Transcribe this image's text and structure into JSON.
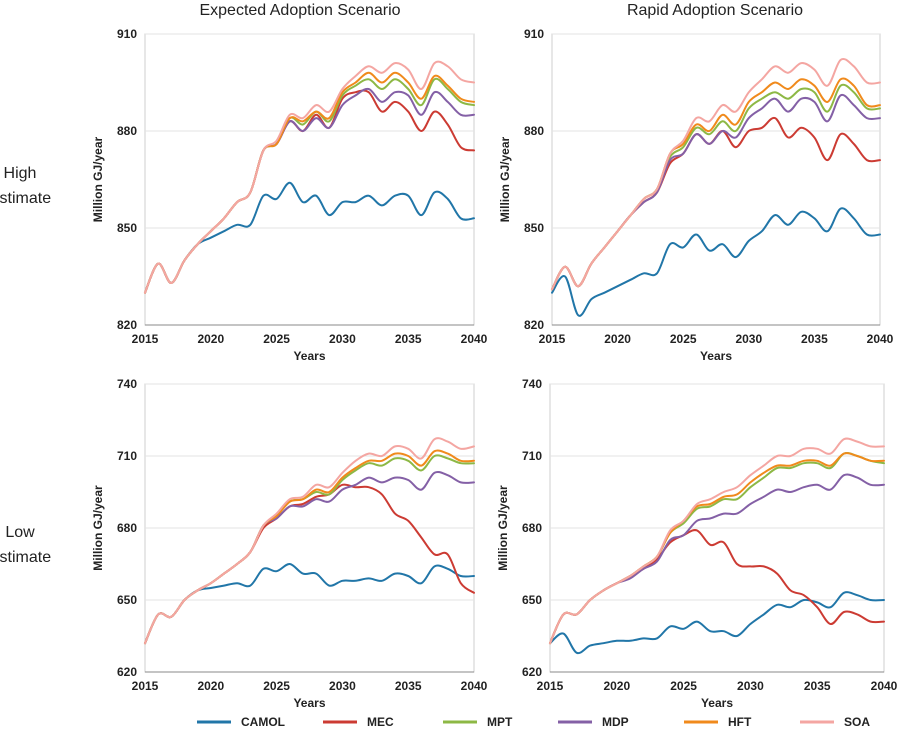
{
  "col_titles": [
    "Expected Adoption Scenario",
    "Rapid Adoption Scenario"
  ],
  "row_labels": [
    [
      "High",
      "Estimate"
    ],
    [
      "Low",
      "Estimate"
    ]
  ],
  "legend": [
    {
      "name": "CAMOL",
      "color": "#2176a8"
    },
    {
      "name": "MEC",
      "color": "#cc3b33"
    },
    {
      "name": "MPT",
      "color": "#8db845"
    },
    {
      "name": "MDP",
      "color": "#8460a6"
    },
    {
      "name": "HFT",
      "color": "#f08a1c"
    },
    {
      "name": "SOA",
      "color": "#f4a6a2"
    }
  ],
  "chart_data": [
    {
      "type": "line",
      "title": "Expected Adoption Scenario",
      "xlabel": "Years",
      "ylabel": "Million GJ/year",
      "xlim": [
        2015,
        2040
      ],
      "ylim": [
        820,
        910
      ],
      "xticks": [
        2015,
        2020,
        2025,
        2030,
        2035,
        2040
      ],
      "yticks": [
        820,
        850,
        880,
        910
      ],
      "grid": true,
      "x": [
        2015,
        2016,
        2017,
        2018,
        2019,
        2020,
        2021,
        2022,
        2023,
        2024,
        2025,
        2026,
        2027,
        2028,
        2029,
        2030,
        2031,
        2032,
        2033,
        2034,
        2035,
        2036,
        2037,
        2038,
        2039,
        2040
      ],
      "series": [
        {
          "name": "CAMOL",
          "values": [
            830,
            839,
            833,
            840,
            845,
            847,
            849,
            851,
            851,
            860,
            859,
            864,
            858,
            860,
            854,
            858,
            858,
            860,
            857,
            860,
            860,
            854,
            861,
            859,
            853,
            853
          ]
        },
        {
          "name": "MEC",
          "values": [
            830,
            839,
            833,
            840,
            845,
            849,
            853,
            858,
            861,
            874,
            876,
            883,
            880,
            885,
            881,
            890,
            892,
            892,
            886,
            889,
            886,
            880,
            886,
            882,
            875,
            874
          ]
        },
        {
          "name": "MPT",
          "values": [
            830,
            839,
            833,
            840,
            845,
            849,
            853,
            858,
            861,
            874,
            876,
            884,
            882,
            886,
            883,
            891,
            894,
            896,
            893,
            896,
            893,
            888,
            896,
            893,
            889,
            888
          ]
        },
        {
          "name": "MDP",
          "values": [
            830,
            839,
            833,
            840,
            845,
            849,
            853,
            858,
            861,
            874,
            876,
            883,
            880,
            884,
            881,
            888,
            891,
            893,
            889,
            892,
            891,
            885,
            892,
            889,
            885,
            885
          ]
        },
        {
          "name": "HFT",
          "values": [
            830,
            839,
            833,
            840,
            845,
            849,
            853,
            858,
            861,
            874,
            876,
            884,
            883,
            886,
            884,
            892,
            895,
            898,
            895,
            898,
            895,
            890,
            897,
            894,
            890,
            889
          ]
        },
        {
          "name": "SOA",
          "values": [
            830,
            839,
            833,
            840,
            845,
            849,
            853,
            858,
            861,
            874,
            877,
            885,
            884,
            888,
            886,
            893,
            897,
            900,
            898,
            901,
            899,
            893,
            901,
            900,
            896,
            895
          ]
        }
      ]
    },
    {
      "type": "line",
      "title": "Rapid Adoption Scenario",
      "xlabel": "Years",
      "ylabel": "Million GJ/year",
      "xlim": [
        2015,
        2040
      ],
      "ylim": [
        820,
        910
      ],
      "xticks": [
        2015,
        2020,
        2025,
        2030,
        2035,
        2040
      ],
      "yticks": [
        820,
        850,
        880,
        910
      ],
      "grid": true,
      "x": [
        2015,
        2016,
        2017,
        2018,
        2019,
        2020,
        2021,
        2022,
        2023,
        2024,
        2025,
        2026,
        2027,
        2028,
        2029,
        2030,
        2031,
        2032,
        2033,
        2034,
        2035,
        2036,
        2037,
        2038,
        2039,
        2040
      ],
      "series": [
        {
          "name": "CAMOL",
          "values": [
            830,
            835,
            823,
            828,
            830,
            832,
            834,
            836,
            836,
            845,
            844,
            848,
            843,
            845,
            841,
            846,
            849,
            854,
            851,
            855,
            853,
            849,
            856,
            853,
            848,
            848
          ]
        },
        {
          "name": "MEC",
          "values": [
            831,
            838,
            832,
            839,
            844,
            849,
            854,
            858,
            861,
            870,
            873,
            879,
            876,
            880,
            875,
            880,
            881,
            884,
            878,
            881,
            878,
            871,
            879,
            876,
            871,
            871
          ]
        },
        {
          "name": "MPT",
          "values": [
            831,
            838,
            832,
            839,
            844,
            849,
            854,
            859,
            862,
            872,
            875,
            881,
            879,
            883,
            880,
            887,
            890,
            892,
            890,
            893,
            892,
            886,
            894,
            892,
            887,
            887
          ]
        },
        {
          "name": "MDP",
          "values": [
            831,
            838,
            832,
            839,
            844,
            849,
            854,
            858,
            861,
            871,
            873,
            879,
            876,
            880,
            878,
            884,
            887,
            890,
            886,
            890,
            889,
            883,
            891,
            888,
            884,
            884
          ]
        },
        {
          "name": "HFT",
          "values": [
            831,
            838,
            832,
            839,
            844,
            849,
            854,
            859,
            862,
            873,
            876,
            882,
            880,
            885,
            882,
            889,
            892,
            895,
            893,
            896,
            894,
            889,
            896,
            894,
            888,
            888
          ]
        },
        {
          "name": "SOA",
          "values": [
            831,
            838,
            832,
            839,
            844,
            849,
            854,
            859,
            862,
            873,
            877,
            884,
            883,
            888,
            886,
            892,
            896,
            900,
            898,
            901,
            899,
            894,
            902,
            900,
            895,
            895
          ]
        }
      ]
    },
    {
      "type": "line",
      "xlabel": "Years",
      "ylabel": "Million GJ/year",
      "xlim": [
        2015,
        2040
      ],
      "ylim": [
        620,
        740
      ],
      "xticks": [
        2015,
        2020,
        2025,
        2030,
        2035,
        2040
      ],
      "yticks": [
        620,
        650,
        680,
        710,
        740
      ],
      "grid": true,
      "x": [
        2015,
        2016,
        2017,
        2018,
        2019,
        2020,
        2021,
        2022,
        2023,
        2024,
        2025,
        2026,
        2027,
        2028,
        2029,
        2030,
        2031,
        2032,
        2033,
        2034,
        2035,
        2036,
        2037,
        2038,
        2039,
        2040
      ],
      "series": [
        {
          "name": "CAMOL",
          "values": [
            632,
            644,
            643,
            650,
            654,
            655,
            656,
            657,
            656,
            663,
            662,
            665,
            661,
            661,
            656,
            658,
            658,
            659,
            658,
            661,
            660,
            657,
            664,
            663,
            660,
            660
          ]
        },
        {
          "name": "MEC",
          "values": [
            632,
            644,
            643,
            650,
            654,
            657,
            661,
            665,
            670,
            680,
            684,
            689,
            690,
            693,
            694,
            698,
            697,
            697,
            694,
            686,
            683,
            676,
            669,
            669,
            657,
            653
          ]
        },
        {
          "name": "MPT",
          "values": [
            632,
            644,
            643,
            650,
            654,
            657,
            661,
            665,
            670,
            681,
            685,
            691,
            692,
            695,
            694,
            700,
            704,
            707,
            706,
            709,
            708,
            704,
            710,
            709,
            707,
            707
          ]
        },
        {
          "name": "MDP",
          "values": [
            632,
            644,
            643,
            650,
            654,
            657,
            661,
            665,
            670,
            681,
            684,
            689,
            689,
            692,
            691,
            696,
            698,
            701,
            699,
            701,
            700,
            696,
            703,
            702,
            699,
            699
          ]
        },
        {
          "name": "HFT",
          "values": [
            632,
            644,
            643,
            650,
            654,
            657,
            661,
            665,
            670,
            681,
            685,
            691,
            692,
            696,
            695,
            701,
            705,
            708,
            708,
            711,
            710,
            706,
            712,
            711,
            708,
            708
          ]
        },
        {
          "name": "SOA",
          "values": [
            632,
            644,
            643,
            650,
            654,
            657,
            661,
            665,
            670,
            681,
            686,
            692,
            693,
            698,
            697,
            703,
            708,
            711,
            710,
            714,
            713,
            709,
            717,
            716,
            713,
            714
          ]
        }
      ]
    },
    {
      "type": "line",
      "xlabel": "Years",
      "ylabel": "Million GJ/year",
      "xlim": [
        2015,
        2040
      ],
      "ylim": [
        620,
        740
      ],
      "xticks": [
        2015,
        2020,
        2025,
        2030,
        2035,
        2040
      ],
      "yticks": [
        620,
        650,
        680,
        710,
        740
      ],
      "grid": true,
      "x": [
        2015,
        2016,
        2017,
        2018,
        2019,
        2020,
        2021,
        2022,
        2023,
        2024,
        2025,
        2026,
        2027,
        2028,
        2029,
        2030,
        2031,
        2032,
        2033,
        2034,
        2035,
        2036,
        2037,
        2038,
        2039,
        2040
      ],
      "series": [
        {
          "name": "CAMOL",
          "values": [
            632,
            636,
            628,
            631,
            632,
            633,
            633,
            634,
            634,
            639,
            638,
            641,
            637,
            637,
            635,
            640,
            644,
            648,
            647,
            650,
            649,
            647,
            653,
            652,
            650,
            650
          ]
        },
        {
          "name": "MEC",
          "values": [
            632,
            644,
            644,
            650,
            654,
            657,
            660,
            663,
            667,
            674,
            677,
            679,
            673,
            674,
            665,
            664,
            664,
            661,
            654,
            652,
            647,
            640,
            645,
            644,
            641,
            641
          ]
        },
        {
          "name": "MPT",
          "values": [
            632,
            644,
            644,
            650,
            654,
            657,
            660,
            664,
            668,
            678,
            682,
            688,
            689,
            692,
            692,
            697,
            701,
            705,
            705,
            707,
            707,
            705,
            711,
            710,
            708,
            707
          ]
        },
        {
          "name": "MDP",
          "values": [
            632,
            644,
            644,
            650,
            654,
            657,
            659,
            663,
            666,
            675,
            677,
            683,
            684,
            686,
            686,
            690,
            693,
            696,
            695,
            697,
            698,
            696,
            702,
            701,
            698,
            698
          ]
        },
        {
          "name": "HFT",
          "values": [
            632,
            644,
            644,
            650,
            654,
            657,
            660,
            664,
            668,
            678,
            683,
            689,
            690,
            693,
            694,
            699,
            703,
            706,
            706,
            708,
            708,
            706,
            711,
            710,
            708,
            708
          ]
        },
        {
          "name": "SOA",
          "values": [
            632,
            644,
            644,
            650,
            654,
            657,
            660,
            664,
            668,
            679,
            683,
            690,
            692,
            695,
            697,
            702,
            706,
            710,
            710,
            713,
            713,
            711,
            717,
            716,
            714,
            714
          ]
        }
      ]
    }
  ]
}
